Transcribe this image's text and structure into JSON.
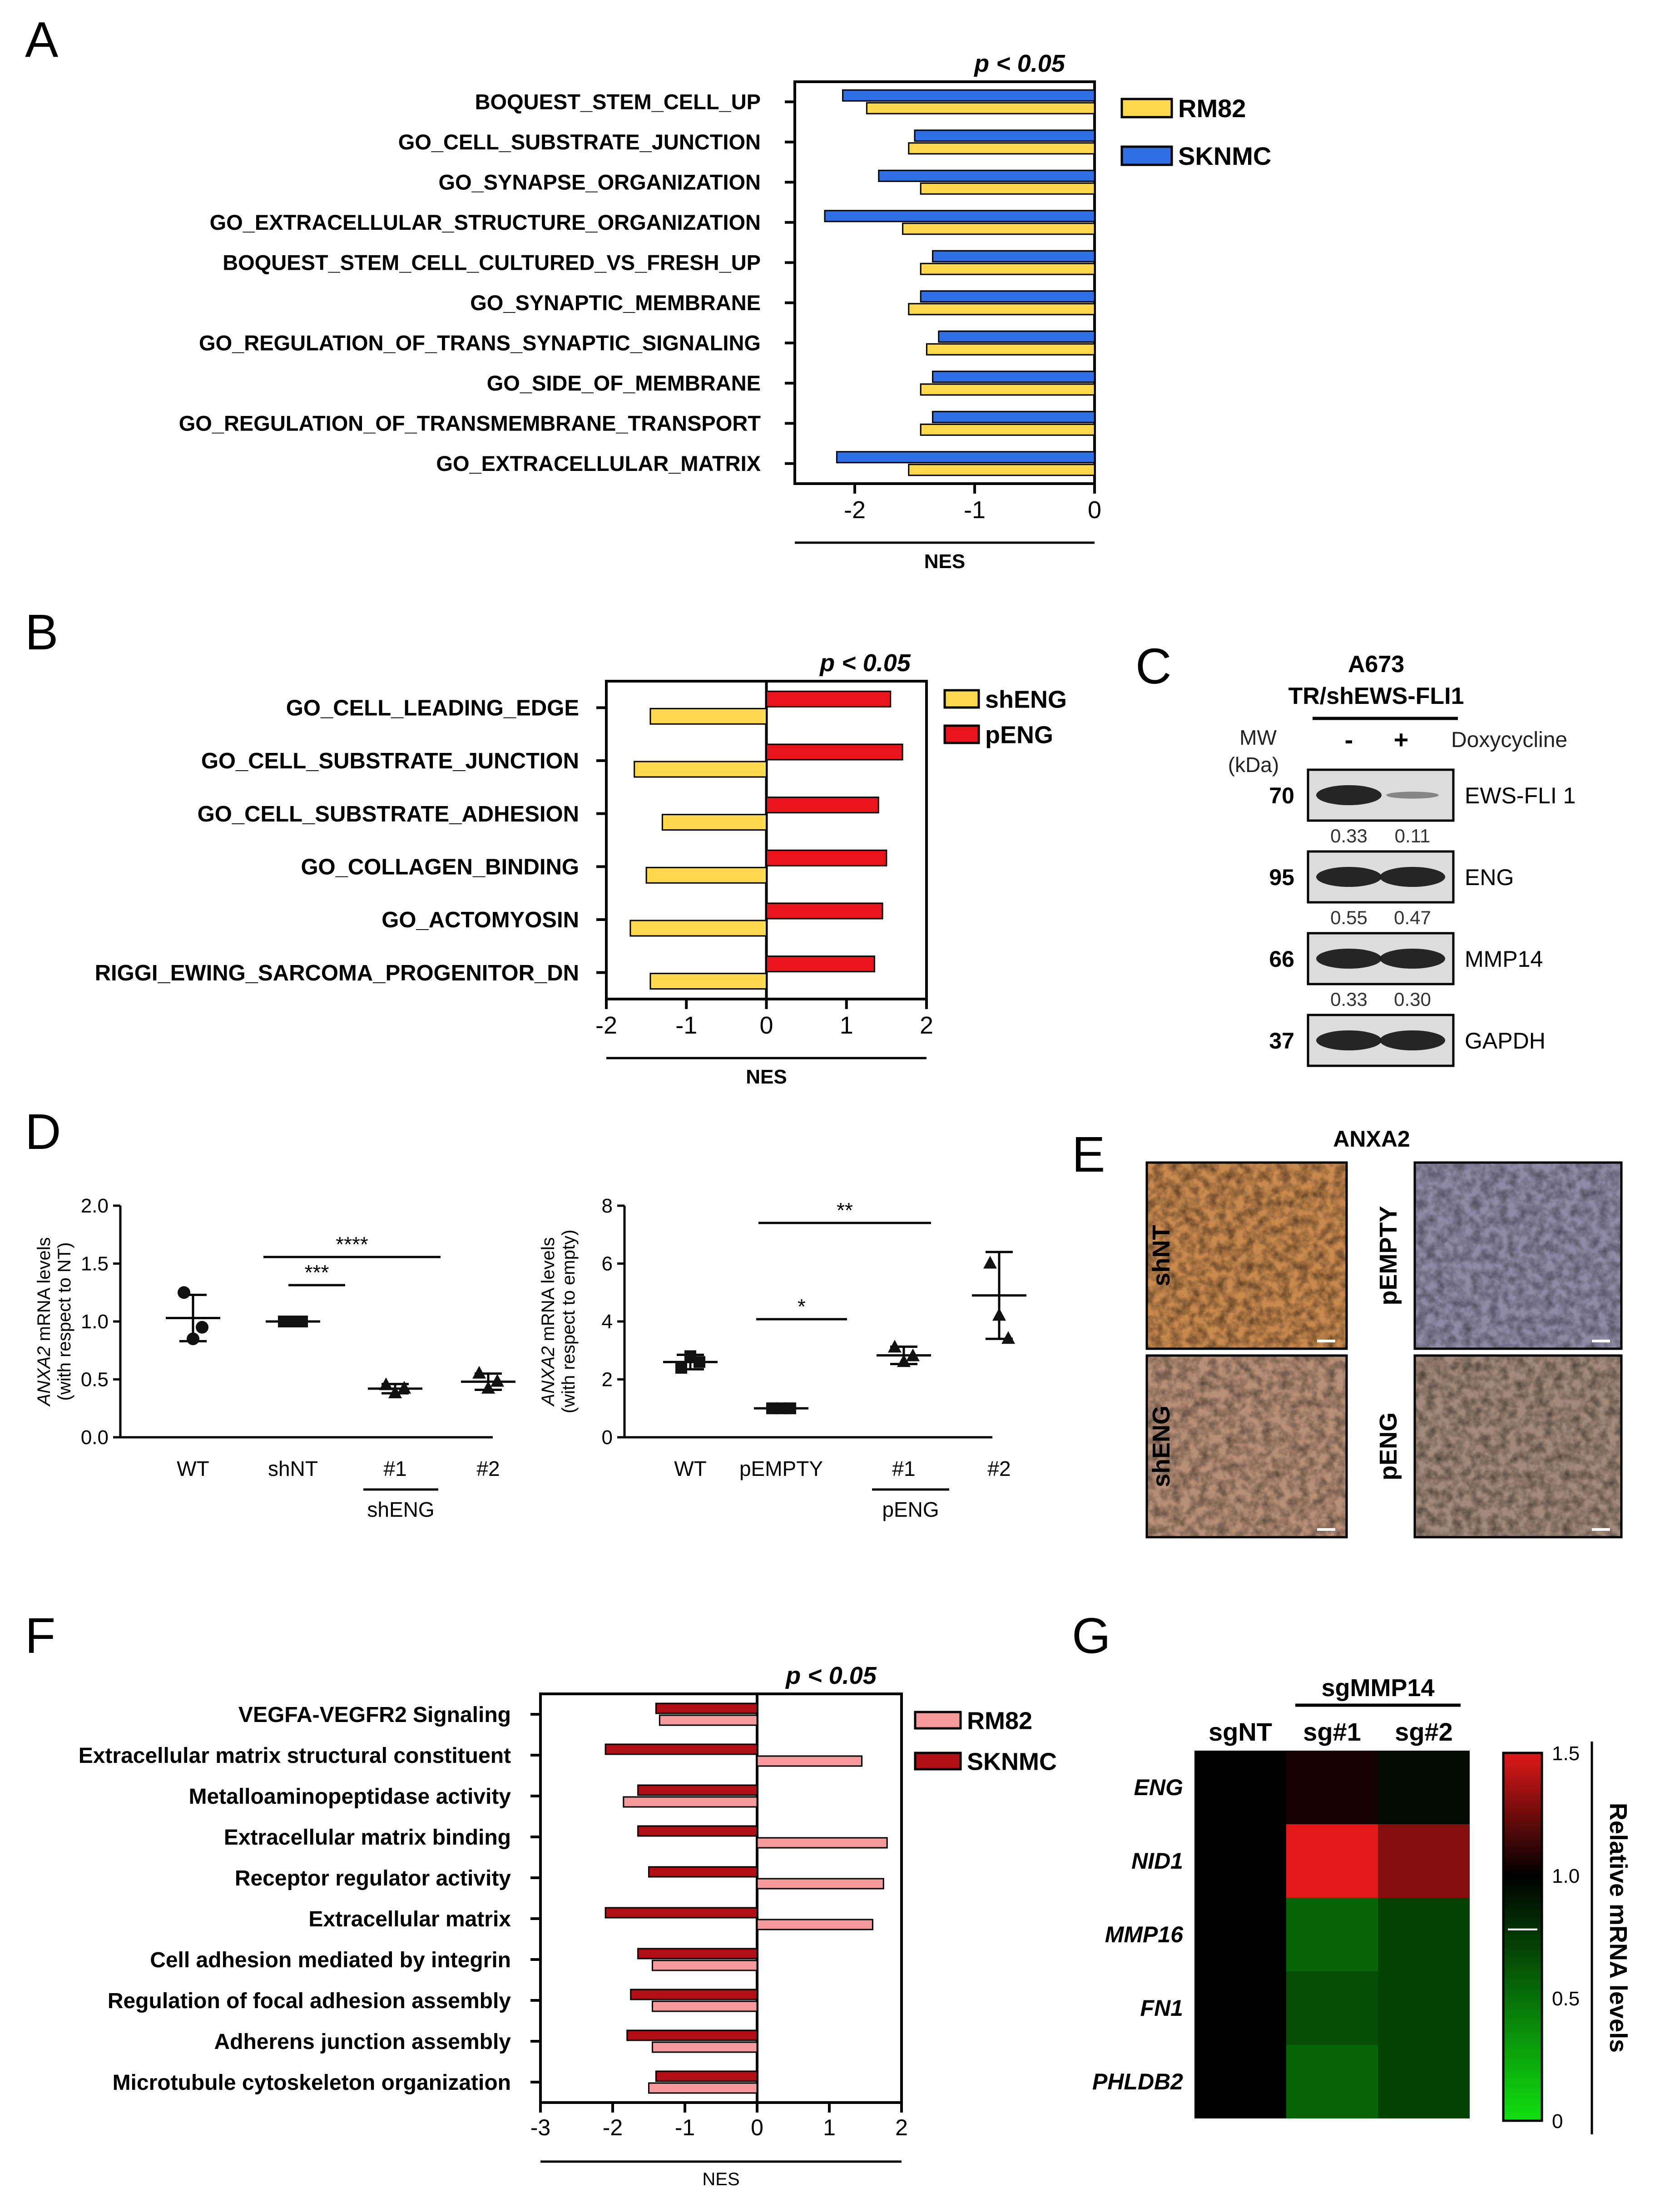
{
  "panel_letters": {
    "A": "A",
    "B": "B",
    "C": "C",
    "D": "D",
    "E": "E",
    "F": "F",
    "G": "G"
  },
  "colors": {
    "yellow": "#FFD84D",
    "blue": "#2E6FE6",
    "red": "#E8141A",
    "darkred": "#B00E12",
    "pink": "#F5999C",
    "black": "#111111"
  },
  "chart_data": [
    {
      "panel": "A",
      "type": "bar",
      "orientation": "horizontal",
      "title": "p < 0.05",
      "xlabel": "NES",
      "xlim": [
        -2.5,
        0
      ],
      "xticks": [
        "-2",
        "-1",
        "0"
      ],
      "categories": [
        "BOQUEST_STEM_CELL_UP",
        "GO_CELL_SUBSTRATE_JUNCTION",
        "GO_SYNAPSE_ORGANIZATION",
        "GO_EXTRACELLULAR_STRUCTURE_ORGANIZATION",
        "BOQUEST_STEM_CELL_CULTURED_VS_FRESH_UP",
        "GO_SYNAPTIC_MEMBRANE",
        "GO_REGULATION_OF_TRANS_SYNAPTIC_SIGNALING",
        "GO_SIDE_OF_MEMBRANE",
        "GO_REGULATION_OF_TRANSMEMBRANE_TRANSPORT",
        "GO_EXTRACELLULAR_MATRIX"
      ],
      "series": [
        {
          "name": "SKNMC",
          "values": [
            -2.1,
            -1.5,
            -1.8,
            -2.25,
            -1.35,
            -1.45,
            -1.3,
            -1.35,
            -1.35,
            -2.15
          ]
        },
        {
          "name": "RM82",
          "values": [
            -1.9,
            -1.55,
            -1.45,
            -1.6,
            -1.45,
            -1.55,
            -1.4,
            -1.45,
            -1.45,
            -1.55
          ]
        }
      ],
      "legend": "top-right"
    },
    {
      "panel": "B",
      "type": "bar",
      "orientation": "horizontal",
      "title": "p < 0.05",
      "xlabel": "NES",
      "xlim": [
        -2,
        2
      ],
      "xticks": [
        "-2",
        "-1",
        "0",
        "1",
        "2"
      ],
      "categories": [
        "GO_CELL_LEADING_EDGE",
        "GO_CELL_SUBSTRATE_JUNCTION",
        "GO_CELL_SUBSTRATE_ADHESION",
        "GO_COLLAGEN_BINDING",
        "GO_ACTOMYOSIN",
        "RIGGI_EWING_SARCOMA_PROGENITOR_DN"
      ],
      "series": [
        {
          "name": "pENG",
          "values": [
            1.55,
            1.7,
            1.4,
            1.5,
            1.45,
            1.35
          ]
        },
        {
          "name": "shENG",
          "values": [
            -1.45,
            -1.65,
            -1.3,
            -1.5,
            -1.7,
            -1.45
          ]
        }
      ],
      "legend": "top-right"
    },
    {
      "panel": "D1",
      "type": "scatter",
      "ylabel_italic": "ANXA2",
      "ylabel_rest": " mRNA levels",
      "ylabel2": "(with respect to NT)",
      "ylim": [
        0,
        2
      ],
      "yticks": [
        "0.0",
        "0.5",
        "1.0",
        "1.5",
        "2.0"
      ],
      "xticks": [
        "WT",
        "shNT",
        "#1",
        "#2"
      ],
      "group_label": "shENG",
      "groups": [
        {
          "name": "WT",
          "points": [
            1.25,
            0.85,
            0.95
          ],
          "mean": 1.03,
          "sd": 0.2
        },
        {
          "name": "shNT",
          "points": [
            1.0,
            1.0,
            1.0
          ],
          "mean": 1.0,
          "sd": 0
        },
        {
          "name": "#1",
          "points": [
            0.45,
            0.38,
            0.42
          ],
          "mean": 0.42,
          "sd": 0.04
        },
        {
          "name": "#2",
          "points": [
            0.55,
            0.42,
            0.48
          ],
          "mean": 0.48,
          "sd": 0.07
        }
      ],
      "sig": [
        {
          "label": "****",
          "from": "shNT",
          "to": "#1"
        },
        {
          "label": "***",
          "from": "shNT",
          "to": "#2"
        }
      ]
    },
    {
      "panel": "D2",
      "type": "scatter",
      "ylabel_italic": "ANXA2",
      "ylabel_rest": " mRNA levels",
      "ylabel2": "(with respect to empty)",
      "ylim": [
        0,
        8
      ],
      "yticks": [
        "0",
        "2",
        "4",
        "6",
        "8"
      ],
      "xticks": [
        "WT",
        "pEMPTY",
        "#1",
        "#2"
      ],
      "group_label": "pENG",
      "groups": [
        {
          "name": "WT",
          "points": [
            2.4,
            2.8,
            2.6
          ],
          "mean": 2.6,
          "sd": 0.25
        },
        {
          "name": "pEMPTY",
          "points": [
            1.0,
            1.0,
            1.0
          ],
          "mean": 1.0,
          "sd": 0
        },
        {
          "name": "#1",
          "points": [
            3.1,
            2.6,
            2.8
          ],
          "mean": 2.83,
          "sd": 0.3
        },
        {
          "name": "#2",
          "points": [
            6.0,
            4.2,
            3.4
          ],
          "mean": 4.9,
          "sd": 1.5
        }
      ],
      "sig": [
        {
          "label": "**",
          "from": "pEMPTY",
          "to": "#1"
        },
        {
          "label": "*",
          "from": "pEMPTY",
          "to": "#2"
        }
      ]
    },
    {
      "panel": "F",
      "type": "bar",
      "orientation": "horizontal",
      "title": "p < 0.05",
      "xlabel": "NES",
      "xlim": [
        -3,
        2
      ],
      "xticks": [
        "-3",
        "-2",
        "-1",
        "0",
        "1",
        "2"
      ],
      "categories": [
        "VEGFA-VEGFR2 Signaling",
        "Extracellular matrix structural constituent",
        "Metalloaminopeptidase  activity",
        "Extracellular matrix binding",
        "Receptor regulator activity",
        "Extracellular matrix",
        "Cell adhesion mediated by integrin",
        "Regulation of focal adhesion assembly",
        "Adherens junction assembly",
        "Microtubule cytoskeleton organization"
      ],
      "series": [
        {
          "name": "SKNMC",
          "values": [
            -1.4,
            -2.1,
            -1.65,
            -1.65,
            -1.5,
            -2.1,
            -1.65,
            -1.75,
            -1.8,
            -1.4
          ]
        },
        {
          "name": "RM82",
          "values": [
            -1.35,
            1.45,
            -1.85,
            1.8,
            1.75,
            1.6,
            -1.45,
            -1.45,
            -1.45,
            -1.5
          ]
        }
      ],
      "legend": "top-right"
    },
    {
      "panel": "G",
      "type": "heatmap",
      "title": "sgMMP14",
      "columns": [
        "sgNT",
        "sg#1",
        "sg#2"
      ],
      "rows": [
        "ENG",
        "NID1",
        "MMP16",
        "FN1",
        "PHLDB2"
      ],
      "values": [
        [
          1.0,
          1.05,
          0.95
        ],
        [
          1.0,
          1.5,
          1.3
        ],
        [
          1.0,
          0.55,
          0.7
        ],
        [
          1.0,
          0.65,
          0.7
        ],
        [
          1.0,
          0.55,
          0.7
        ]
      ],
      "colorbar": {
        "min": 0,
        "max": 1.5,
        "ticks": [
          "1.5",
          "1.0",
          "0.5",
          "0"
        ],
        "label": "Relative mRNA levels"
      }
    }
  ],
  "panelC": {
    "title1": "A673",
    "title2": "TR/shEWS-FLI1",
    "mw_label": "MW",
    "mw_unit": "(kDa)",
    "minus": "-",
    "plus": "+",
    "treatment": "Doxycycline",
    "blots": [
      {
        "mw": "70",
        "name": "EWS-FLI 1",
        "q1": "0.33",
        "q2": "0.11",
        "band1": 1.0,
        "band2": 0.25
      },
      {
        "mw": "95",
        "name": "ENG",
        "q1": "0.55",
        "q2": "0.47",
        "band1": 1.0,
        "band2": 1.0
      },
      {
        "mw": "66",
        "name": "MMP14",
        "q1": "0.33",
        "q2": "0.30",
        "band1": 1.0,
        "band2": 1.0
      },
      {
        "mw": "37",
        "name": "GAPDH",
        "q1": "",
        "q2": "",
        "band1": 1.0,
        "band2": 1.0
      }
    ]
  },
  "panelE": {
    "title": "ANXA2",
    "labels": [
      "shNT",
      "pEMPTY",
      "shENG",
      "pENG"
    ]
  }
}
